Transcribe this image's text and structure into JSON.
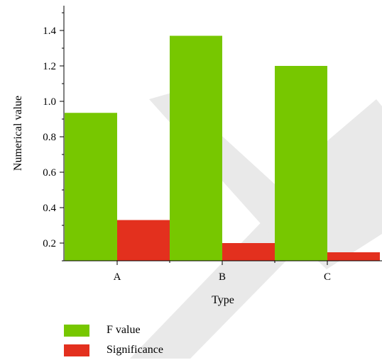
{
  "colors": {
    "f_value": "#77c700",
    "significance": "#e3301e",
    "axis": "#000000",
    "watermark": "#e9e9e9"
  },
  "chart_data": {
    "type": "bar",
    "categories": [
      "A",
      "B",
      "C"
    ],
    "series": [
      {
        "name": "F value",
        "values": [
          0.935,
          1.37,
          1.2
        ]
      },
      {
        "name": "Significance",
        "values": [
          0.33,
          0.2,
          0.148
        ]
      }
    ],
    "xlabel": "Type",
    "ylabel": "Numerical value",
    "ylim": [
      0.1,
      1.5
    ],
    "yticks": [
      "0.2",
      "0.4",
      "0.6",
      "0.8",
      "1.0",
      "1.2",
      "1.4"
    ],
    "grid": false,
    "legend_position": "bottom-left"
  },
  "legend": {
    "items": [
      {
        "label": "F value"
      },
      {
        "label": "Significance"
      }
    ]
  }
}
